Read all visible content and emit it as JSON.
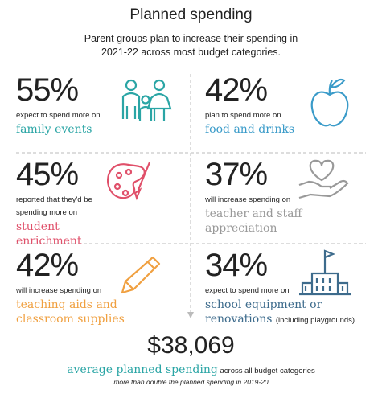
{
  "header": {
    "title": "Planned spending",
    "subtitle": "Parent groups plan to increase their spending in 2021-22 across most budget categories."
  },
  "items": [
    {
      "percent": "55%",
      "description": "expect to spend more on",
      "highlight": "family events"
    },
    {
      "percent": "42%",
      "description": "plan to spend more on",
      "highlight": "food and drinks"
    },
    {
      "percent": "45%",
      "description": "reported that they'd be spending more on",
      "highlight": "student enrichment"
    },
    {
      "percent": "37%",
      "description": "will increase spending on",
      "highlight": "teacher and staff appreciation"
    },
    {
      "percent": "42%",
      "description": "will increase spending on",
      "highlight": "teaching aids and classroom supplies"
    },
    {
      "percent": "34%",
      "description": "expect to spend more on",
      "highlight": "school equipment or renovations",
      "note": "(including playgrounds)"
    }
  ],
  "footer": {
    "amount": "$38,069",
    "highlight": "average planned spending",
    "text": "across all budget categories",
    "note": "more than double the planned spending in 2019-20"
  }
}
